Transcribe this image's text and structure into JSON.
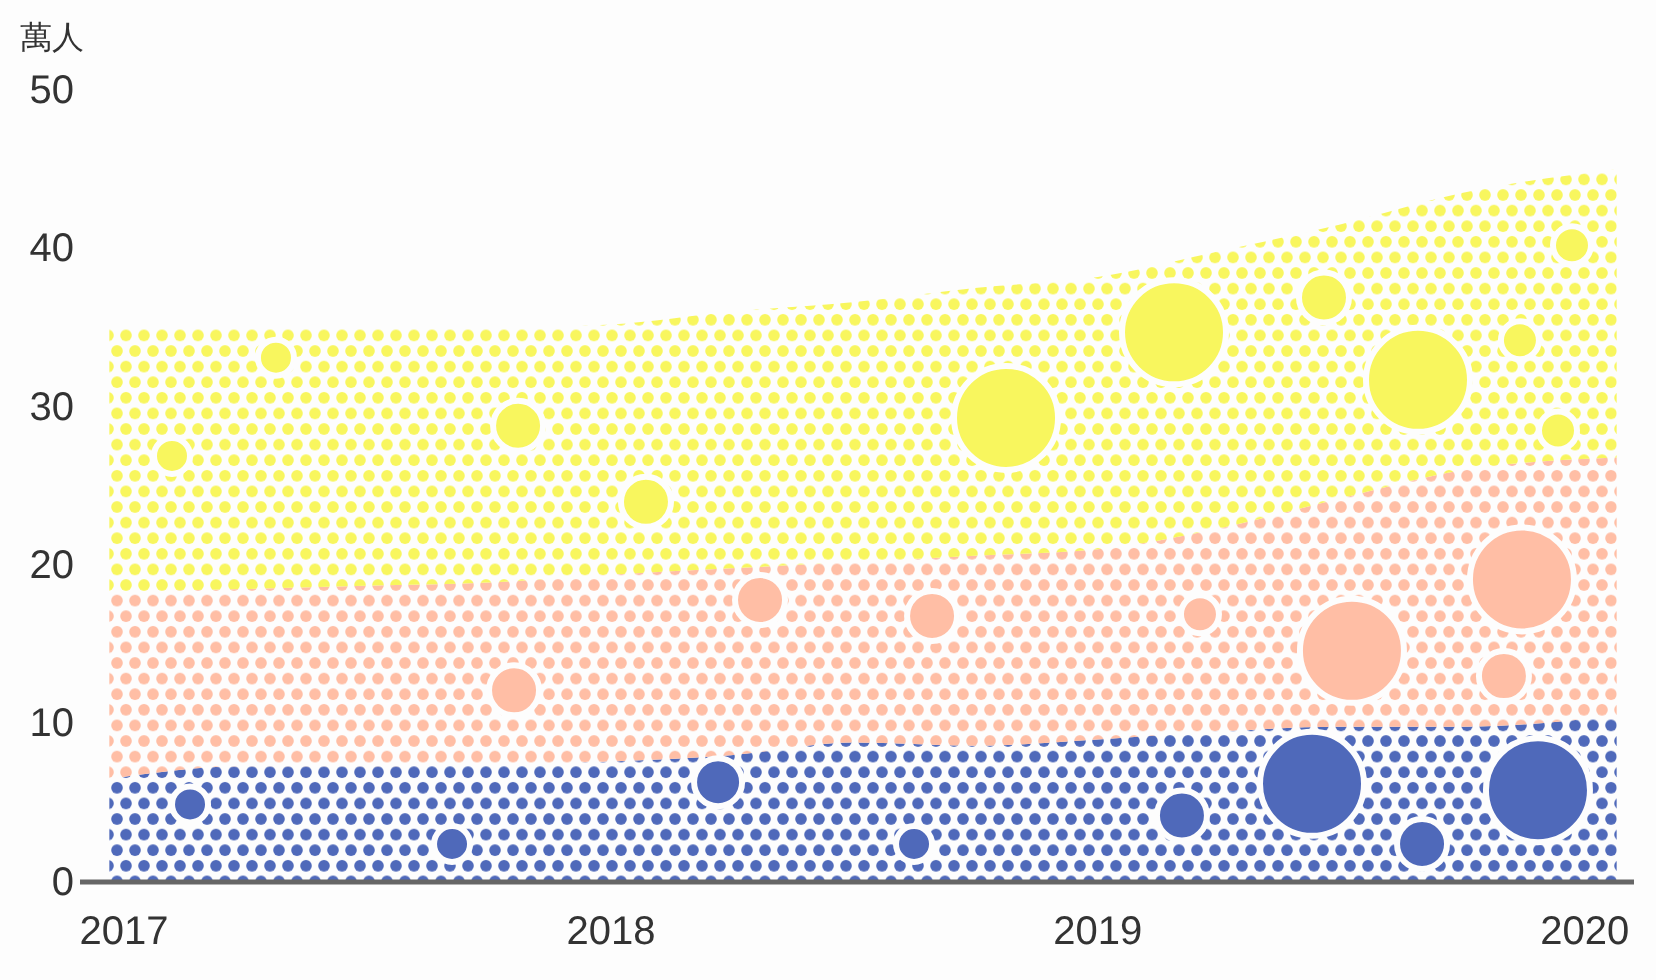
{
  "chart_data": {
    "type": "area",
    "stacked": true,
    "ylabel": "萬人",
    "x": [
      "2016-12-21",
      "2017-04-01",
      "2017-07-01",
      "2017-10-01",
      "2018-01-01",
      "2018-04-01",
      "2018-07-01",
      "2018-10-01",
      "2019-01-01",
      "2019-04-01",
      "2019-07-01",
      "2019-10-01",
      "2020-01-25"
    ],
    "xlim": [
      "2016-11-29",
      "2020-02-07"
    ],
    "xticks": [
      "2017",
      "2018",
      "2019",
      "2020"
    ],
    "ylim": [
      0,
      50
    ],
    "yticks": [
      0,
      10,
      20,
      30,
      40,
      50
    ],
    "series": [
      {
        "color": "#4f69ba",
        "values": [
          6.5,
          7.3,
          7.3,
          7.4,
          7.6,
          8.0,
          8.8,
          8.6,
          9.0,
          9.5,
          9.8,
          9.8,
          10.5
        ]
      },
      {
        "color": "#ffbea5",
        "values": [
          11.8,
          11.2,
          11.4,
          11.5,
          11.8,
          11.8,
          11.4,
          12.0,
          12.0,
          12.8,
          14.4,
          16.2,
          16.3
        ]
      },
      {
        "color": "#f8f65e",
        "values": [
          16.7,
          16.5,
          16.3,
          16.1,
          15.8,
          16.2,
          16.4,
          16.9,
          17.2,
          17.5,
          17.3,
          17.5,
          18.2
        ]
      }
    ]
  }
}
